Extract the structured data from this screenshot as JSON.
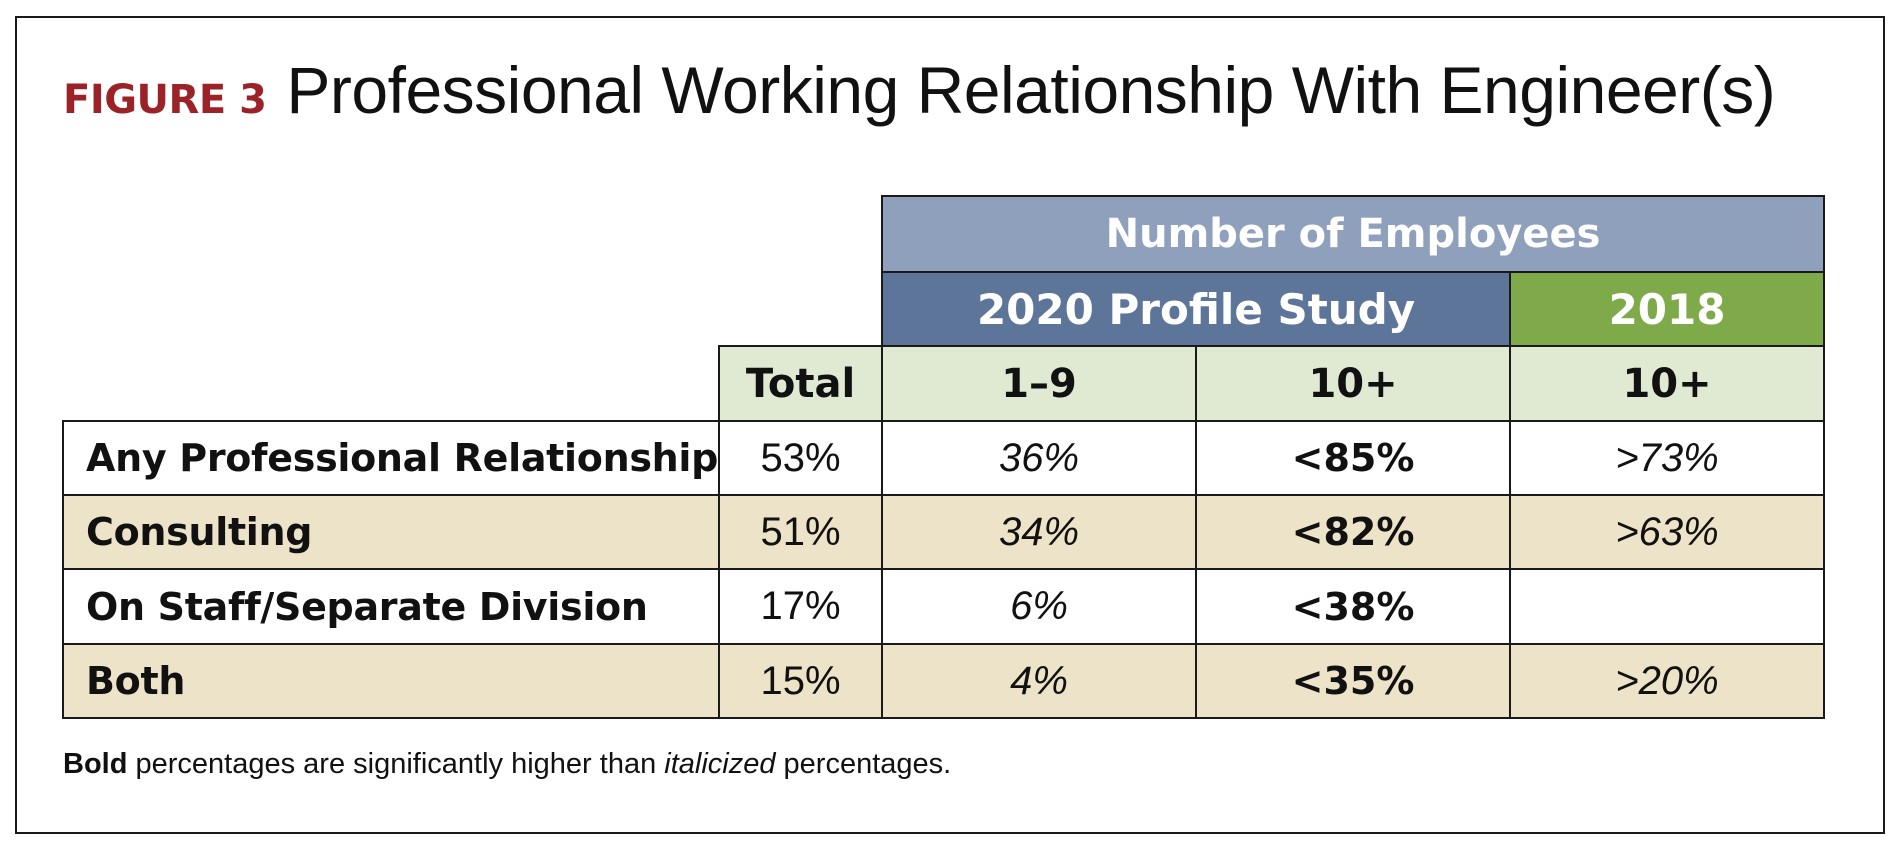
{
  "figure": {
    "label": "FIGURE 3",
    "title": "Professional Working Relationship With Engineer(s)"
  },
  "table": {
    "group_header": "Number of Employees",
    "sub_headers": [
      "2020 Profile Study",
      "2018"
    ],
    "columns": [
      "Total",
      "1–9",
      "10+",
      "10+"
    ],
    "rows": [
      {
        "label": "Any Professional Relationship",
        "total": "53%",
        "small": "36%",
        "large2020": "<85%",
        "large2018": ">73%"
      },
      {
        "label": "Consulting",
        "total": "51%",
        "small": "34%",
        "large2020": "<82%",
        "large2018": ">63%"
      },
      {
        "label": "On Staff/Separate Division",
        "total": "17%",
        "small": "6%",
        "large2020": "<38%",
        "large2018": ""
      },
      {
        "label": "Both",
        "total": "15%",
        "small": "4%",
        "large2020": "<35%",
        "large2018": ">20%"
      }
    ]
  },
  "footnote": {
    "bold_word": "Bold",
    "text_1": " percentages are significantly higher than ",
    "italic_word": "italicized",
    "text_2": " percentages."
  },
  "colors": {
    "figure_label": "#9b2226",
    "group_header_bg": "#8fa0bd",
    "header_2020_bg": "#5c7599",
    "header_2018_bg": "#7faa4a",
    "column_header_bg": "#e0ead3",
    "alt_row_bg": "#ede3c9"
  },
  "chart_data": {
    "type": "table",
    "title": "Professional Working Relationship With Engineer(s)",
    "column_groups": [
      {
        "name": "2020 Profile Study",
        "columns": [
          "1–9",
          "10+"
        ]
      },
      {
        "name": "2018",
        "columns": [
          "10+"
        ]
      }
    ],
    "columns": [
      "Total",
      "1–9",
      "10+",
      "10+"
    ],
    "categories": [
      "Any Professional Relationship",
      "Consulting",
      "On Staff/Separate Division",
      "Both"
    ],
    "series": [
      {
        "name": "Total",
        "values": [
          53,
          51,
          17,
          15
        ]
      },
      {
        "name": "1–9",
        "values": [
          36,
          34,
          6,
          4
        ]
      },
      {
        "name": "10+",
        "values": [
          85,
          82,
          38,
          35
        ]
      },
      {
        "name": "10+",
        "values": [
          73,
          63,
          null,
          20
        ]
      }
    ]
  }
}
